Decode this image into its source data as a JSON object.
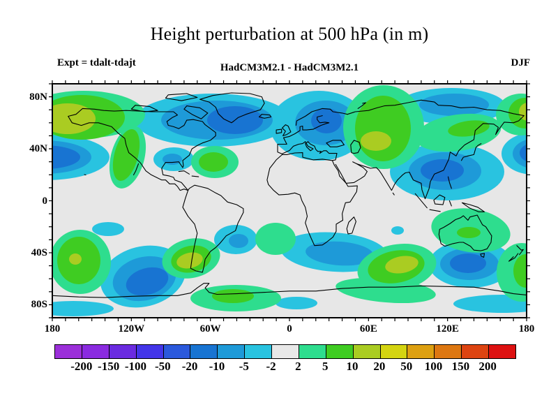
{
  "title": "Height perturbation at 500 hPa (in m)",
  "annotations": {
    "experiment": "Expt = tdalt-tdajt",
    "model_diff": "HadCM3M2.1 - HadCM3M2.1",
    "season": "DJF"
  },
  "axes": {
    "lat_labels": [
      {
        "text": "80N",
        "lat": 80
      },
      {
        "text": "40N",
        "lat": 40
      },
      {
        "text": "0",
        "lat": 0
      },
      {
        "text": "40S",
        "lat": -40
      },
      {
        "text": "80S",
        "lat": -80
      }
    ],
    "lon_labels": [
      {
        "text": "180",
        "lon": -180
      },
      {
        "text": "120W",
        "lon": -120
      },
      {
        "text": "60W",
        "lon": -60
      },
      {
        "text": "0",
        "lon": 0
      },
      {
        "text": "60E",
        "lon": 60
      },
      {
        "text": "120E",
        "lon": 120
      },
      {
        "text": "180",
        "lon": 180
      }
    ],
    "lon_range": [
      -180,
      180
    ],
    "lat_range": [
      -90,
      90
    ],
    "minor_tick_step_deg": 10
  },
  "colorbar": {
    "labels": [
      "-200",
      "-150",
      "-100",
      "-50",
      "-20",
      "-10",
      "-5",
      "-2",
      "2",
      "5",
      "10",
      "20",
      "50",
      "100",
      "150",
      "200"
    ],
    "colors": [
      "#9B2FD9",
      "#8A2BE0",
      "#6A2BE0",
      "#4335E8",
      "#2B59DC",
      "#1874D2",
      "#1E9AD8",
      "#29C3E0",
      "#E8E8E8",
      "#2EDD8E",
      "#3FCC22",
      "#AACC22",
      "#D4D411",
      "#DDA011",
      "#DD7711",
      "#DD4411",
      "#DD1111"
    ]
  },
  "chart_data": {
    "type": "filled-contour-map",
    "title": "Height perturbation at 500 hPa (in m)",
    "variable": "Height perturbation at 500 hPa",
    "units": "m",
    "season": "DJF",
    "experiment": "tdalt-tdajt",
    "model": "HadCM3M2.1 - HadCM3M2.1",
    "projection": "equirectangular lon -180..180, lat 90..-90",
    "contour_levels": [
      -200,
      -150,
      -100,
      -50,
      -20,
      -10,
      -5,
      -2,
      2,
      5,
      10,
      20,
      50,
      100,
      150,
      200
    ],
    "map_background": "#E7E7E7",
    "coastline_color": "#000000",
    "level_colors": {
      "L1": "#1874D2",
      "L2": "#1E9AD8",
      "L3": "#29C3E0",
      "P1": "#2EDD8E",
      "P2": "#3FCC22",
      "P3": "#AACC22"
    },
    "level_meaning": {
      "L1": "-20 to -10 m",
      "L2": "-10 to -5 m",
      "L3": "-5 to -2 m",
      "P1": "2 to 5 m",
      "P2": "5 to 10 m",
      "P3": "10 to 20 m"
    },
    "region_coord_space": "plot pixels 680x335; x=(lon+180)/360*680, y=(90-lat)/180*335",
    "regions": [
      [
        -10,
        105,
        92,
        33,
        0,
        "L3"
      ],
      [
        690,
        100,
        46,
        30,
        0,
        "L3"
      ],
      [
        230,
        52,
        112,
        38,
        0,
        "L3"
      ],
      [
        174,
        108,
        29,
        17,
        0,
        "L3"
      ],
      [
        382,
        60,
        70,
        50,
        0,
        "L3"
      ],
      [
        572,
        32,
        78,
        26,
        0,
        "L3"
      ],
      [
        566,
        126,
        82,
        41,
        0,
        "L3"
      ],
      [
        80,
        208,
        23,
        10,
        0,
        "L3"
      ],
      [
        130,
        276,
        62,
        43,
        -14,
        "L3"
      ],
      [
        263,
        223,
        31,
        21,
        0,
        "L3"
      ],
      [
        404,
        241,
        77,
        28,
        4,
        "L3"
      ],
      [
        495,
        210,
        9,
        6,
        0,
        "L3"
      ],
      [
        600,
        258,
        60,
        34,
        0,
        "L3"
      ],
      [
        30,
        322,
        58,
        11,
        0,
        "L3"
      ],
      [
        645,
        315,
        70,
        13,
        0,
        "L3"
      ],
      [
        350,
        314,
        30,
        9,
        0,
        "L3"
      ],
      [
        -12,
        105,
        68,
        24,
        0,
        "L2"
      ],
      [
        694,
        100,
        34,
        22,
        0,
        "L2"
      ],
      [
        236,
        52,
        80,
        28,
        0,
        "L2"
      ],
      [
        172,
        108,
        14,
        8,
        0,
        "L2"
      ],
      [
        392,
        56,
        44,
        32,
        0,
        "L2"
      ],
      [
        576,
        30,
        50,
        16,
        0,
        "L2"
      ],
      [
        563,
        125,
        52,
        27,
        0,
        "L2"
      ],
      [
        132,
        279,
        46,
        31,
        -14,
        "L2"
      ],
      [
        267,
        225,
        14,
        10,
        0,
        "L2"
      ],
      [
        412,
        243,
        49,
        17,
        4,
        "L2"
      ],
      [
        598,
        258,
        42,
        23,
        0,
        "L2"
      ],
      [
        -12,
        105,
        52,
        17,
        0,
        "L1"
      ],
      [
        690,
        99,
        20,
        14,
        0,
        "L1"
      ],
      [
        262,
        52,
        40,
        20,
        0,
        "L1"
      ],
      [
        393,
        53,
        22,
        18,
        0,
        "L1"
      ],
      [
        559,
        124,
        31,
        16,
        0,
        "L1"
      ],
      [
        136,
        283,
        31,
        19,
        -16,
        "L1"
      ],
      [
        596,
        257,
        26,
        14,
        0,
        "L1"
      ],
      [
        45,
        44,
        88,
        34,
        0,
        "P1"
      ],
      [
        108,
        105,
        24,
        46,
        15,
        "P1"
      ],
      [
        233,
        112,
        34,
        23,
        0,
        "P1"
      ],
      [
        475,
        62,
        58,
        60,
        0,
        "P1"
      ],
      [
        582,
        70,
        62,
        26,
        -8,
        "P1"
      ],
      [
        672,
        44,
        36,
        30,
        0,
        "P1"
      ],
      [
        40,
        255,
        44,
        46,
        0,
        "P1"
      ],
      [
        199,
        250,
        42,
        28,
        -12,
        "P1"
      ],
      [
        320,
        222,
        29,
        23,
        0,
        "P1"
      ],
      [
        263,
        307,
        65,
        19,
        0,
        "P1"
      ],
      [
        494,
        263,
        57,
        33,
        -10,
        "P1"
      ],
      [
        600,
        210,
        57,
        31,
        8,
        "P1"
      ],
      [
        478,
        296,
        72,
        17,
        5,
        "P1"
      ],
      [
        673,
        270,
        36,
        42,
        0,
        "P1"
      ],
      [
        42,
        48,
        62,
        32,
        0,
        "P2"
      ],
      [
        106,
        102,
        17,
        38,
        15,
        "P2"
      ],
      [
        231,
        112,
        21,
        14,
        0,
        "P2"
      ],
      [
        474,
        64,
        40,
        47,
        0,
        "P2"
      ],
      [
        597,
        64,
        30,
        11,
        -8,
        "P2"
      ],
      [
        678,
        42,
        24,
        22,
        0,
        "P2"
      ],
      [
        38,
        253,
        31,
        34,
        0,
        "P2"
      ],
      [
        199,
        251,
        29,
        19,
        -12,
        "P2"
      ],
      [
        259,
        304,
        30,
        10,
        0,
        "P2"
      ],
      [
        493,
        262,
        41,
        23,
        -10,
        "P2"
      ],
      [
        597,
        213,
        17,
        8,
        0,
        "P2"
      ],
      [
        679,
        268,
        18,
        24,
        0,
        "P2"
      ],
      [
        22,
        50,
        40,
        22,
        0,
        "P3"
      ],
      [
        464,
        82,
        22,
        14,
        0,
        "P3"
      ],
      [
        682,
        40,
        13,
        13,
        0,
        "P3"
      ],
      [
        33,
        251,
        9,
        8,
        0,
        "P3"
      ],
      [
        197,
        253,
        19,
        11,
        -12,
        "P3"
      ],
      [
        501,
        259,
        24,
        12,
        -10,
        "P3"
      ]
    ]
  }
}
